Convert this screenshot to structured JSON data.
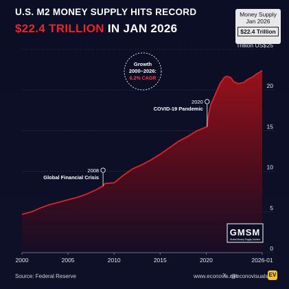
{
  "header": {
    "title_line1": "U.S. M2 MONEY SUPPLY HITS RECORD",
    "title_line2_red": "$22.4 TRILLION",
    "title_line2_white": " IN JAN 2026"
  },
  "badge": {
    "line1": "Money Supply",
    "line2": "Jan 2026",
    "value": "$22.4 Trillion"
  },
  "growth_callout": {
    "line1": "Growth",
    "line2": "2000–2026:",
    "line3": "6.2% CAGR"
  },
  "logo": {
    "main": "GMSM",
    "sub": "Global Money Supply Monitor"
  },
  "footer": {
    "source": "Source: Federal Reserve",
    "website": "www.econovis.net",
    "x_glyph": "𝕏",
    "handle": "@econovisuals",
    "brand": "EV"
  },
  "colors": {
    "accent_red": "#e8262b",
    "line_red": "#c01a22",
    "background": "#0b0e24"
  },
  "chart_data": {
    "type": "area",
    "title": "U.S. M2 MONEY SUPPLY HITS RECORD $22.4 TRILLION IN JAN 2026",
    "ylabel": "Trillion US$",
    "xlim": [
      2000,
      2026.08
    ],
    "ylim": [
      0,
      25
    ],
    "grid": true,
    "x_tick_labels": [
      "2000",
      "2005",
      "2010",
      "2015",
      "2020",
      "2026-01"
    ],
    "x_ticks": [
      2000,
      2005,
      2010,
      2015,
      2020,
      2026.08
    ],
    "y_ticks": [
      0,
      5,
      10,
      15,
      20,
      25
    ],
    "y_tick_labels": [
      "0",
      "5",
      "10",
      "15",
      "20",
      "25"
    ],
    "series": [
      {
        "values_x": [
          2000,
          2001,
          2002,
          2003,
          2004,
          2005,
          2006,
          2007,
          2008,
          2008.8,
          2009,
          2010,
          2011,
          2012,
          2013,
          2014,
          2015,
          2016,
          2017,
          2018,
          2019,
          2020.1,
          2020.2,
          2020.5,
          2021,
          2021.5,
          2022,
          2022.3,
          2022.7,
          2023,
          2023.5,
          2024,
          2024.5,
          2025,
          2025.5,
          2026.08
        ],
        "values_y": [
          4.7,
          5.0,
          5.5,
          5.9,
          6.2,
          6.5,
          6.8,
          7.2,
          7.7,
          8.2,
          8.5,
          8.6,
          9.5,
          10.3,
          10.8,
          11.4,
          12.1,
          12.9,
          13.7,
          14.3,
          15.0,
          15.5,
          16.7,
          18.2,
          19.5,
          20.8,
          21.6,
          21.7,
          21.5,
          21.0,
          20.8,
          20.9,
          21.3,
          21.6,
          22.0,
          22.4
        ]
      }
    ],
    "annotations": [
      {
        "x": 2008.8,
        "y": 8.2,
        "year": "2008",
        "label": "Global Financial Crisis"
      },
      {
        "x": 2020.1,
        "y": 15.5,
        "year": "2020",
        "label": "COVID-19 Pandemic"
      }
    ]
  }
}
